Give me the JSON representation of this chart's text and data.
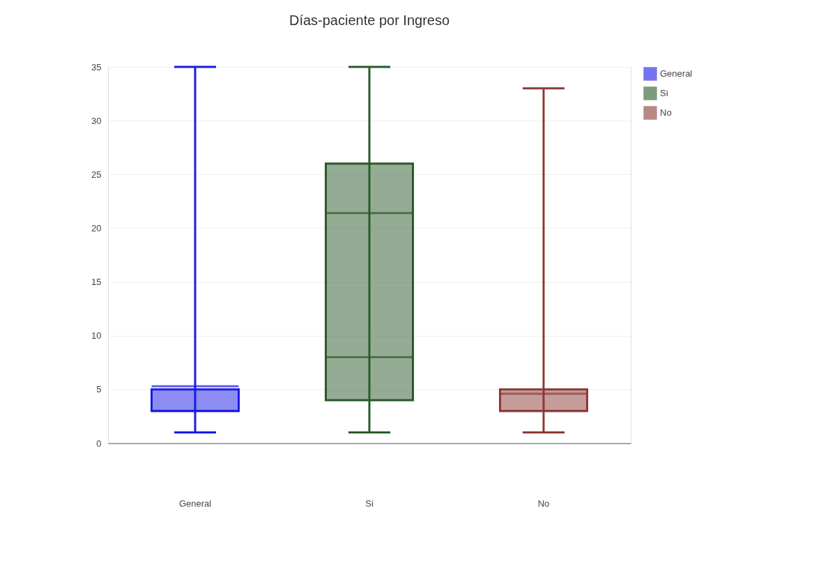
{
  "chart_data": {
    "type": "box",
    "title": "Días-paciente por Ingreso",
    "categories": [
      "General",
      "Si",
      "No"
    ],
    "series": [
      {
        "name": "General",
        "color": "#1a1ae6",
        "boxes": [
          {
            "low": 1,
            "q1": 3,
            "median": 3,
            "q3": 5,
            "high": 35,
            "mean": 5.3
          },
          null,
          null
        ]
      },
      {
        "name": "Si",
        "color": "#2a5a2a",
        "boxes": [
          null,
          {
            "low": 1,
            "q1": 4,
            "median": 8,
            "q3": 26,
            "high": 35,
            "mean": 21.4
          },
          null
        ]
      },
      {
        "name": "No",
        "color": "#8b3a34",
        "boxes": [
          null,
          null,
          {
            "low": 1,
            "q1": 3,
            "median": 3,
            "q3": 5,
            "high": 33,
            "mean": 4.6
          }
        ]
      }
    ],
    "ylim": [
      0,
      35
    ],
    "yticks": [
      0,
      5,
      10,
      15,
      20,
      25,
      30,
      35
    ],
    "grid": "y",
    "legend": "top right"
  }
}
